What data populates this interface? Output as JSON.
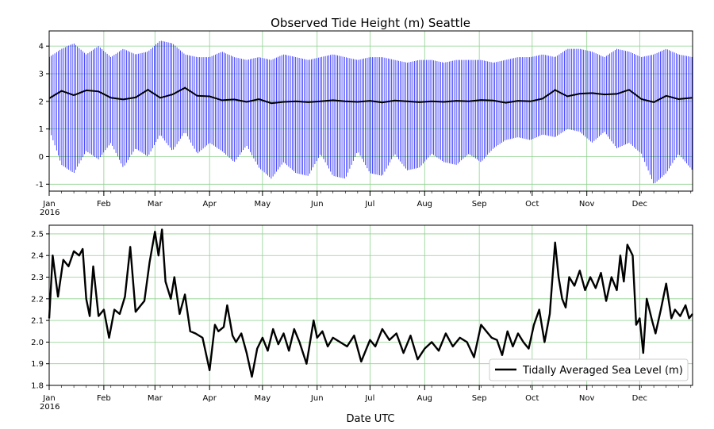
{
  "chart_data": [
    {
      "type": "line",
      "title": "Observed Tide Height (m) Seattle",
      "xlabel": "",
      "ylabel": "",
      "x_tick_labels": [
        "Jan",
        "Feb",
        "Mar",
        "Apr",
        "May",
        "Jun",
        "Jul",
        "Aug",
        "Sep",
        "Oct",
        "Nov",
        "Dec"
      ],
      "x_year_label": "2016",
      "xlim": [
        "2016-01-01",
        "2016-12-31"
      ],
      "ylim": [
        -1.25,
        4.55
      ],
      "y_ticks": [
        -1,
        0,
        1,
        2,
        3,
        4
      ],
      "grid": true,
      "colors": {
        "observed": "#0000ff",
        "average": "#000000",
        "grid": "#8fd18f"
      },
      "series": [
        {
          "role": "observed-envelope",
          "x": [
            "2016-01-01",
            "2016-01-08",
            "2016-01-15",
            "2016-01-22",
            "2016-01-29",
            "2016-02-05",
            "2016-02-12",
            "2016-02-19",
            "2016-02-26",
            "2016-03-04",
            "2016-03-11",
            "2016-03-18",
            "2016-03-25",
            "2016-04-01",
            "2016-04-08",
            "2016-04-15",
            "2016-04-22",
            "2016-04-29",
            "2016-05-06",
            "2016-05-13",
            "2016-05-20",
            "2016-05-27",
            "2016-06-03",
            "2016-06-10",
            "2016-06-17",
            "2016-06-24",
            "2016-07-01",
            "2016-07-08",
            "2016-07-15",
            "2016-07-22",
            "2016-07-29",
            "2016-08-05",
            "2016-08-12",
            "2016-08-19",
            "2016-08-26",
            "2016-09-02",
            "2016-09-09",
            "2016-09-16",
            "2016-09-23",
            "2016-09-30",
            "2016-10-07",
            "2016-10-14",
            "2016-10-21",
            "2016-10-28",
            "2016-11-04",
            "2016-11-11",
            "2016-11-18",
            "2016-11-25",
            "2016-12-02",
            "2016-12-09",
            "2016-12-16",
            "2016-12-23",
            "2016-12-31"
          ],
          "high": [
            3.6,
            3.9,
            4.1,
            3.7,
            4.0,
            3.6,
            3.9,
            3.7,
            3.8,
            4.2,
            4.1,
            3.7,
            3.6,
            3.6,
            3.8,
            3.6,
            3.5,
            3.6,
            3.5,
            3.7,
            3.6,
            3.5,
            3.6,
            3.7,
            3.6,
            3.5,
            3.6,
            3.6,
            3.5,
            3.4,
            3.5,
            3.5,
            3.4,
            3.5,
            3.5,
            3.5,
            3.4,
            3.5,
            3.6,
            3.6,
            3.7,
            3.6,
            3.9,
            3.9,
            3.8,
            3.6,
            3.9,
            3.8,
            3.6,
            3.7,
            3.9,
            3.7,
            3.6
          ],
          "low": [
            1.0,
            -0.3,
            -0.6,
            0.2,
            -0.1,
            0.5,
            -0.4,
            0.3,
            0.0,
            0.8,
            0.2,
            0.9,
            0.1,
            0.5,
            0.2,
            -0.2,
            0.4,
            -0.4,
            -0.8,
            -0.2,
            -0.6,
            -0.7,
            0.1,
            -0.7,
            -0.8,
            0.2,
            -0.6,
            -0.7,
            0.1,
            -0.5,
            -0.4,
            0.1,
            -0.2,
            -0.3,
            0.1,
            -0.2,
            0.3,
            0.6,
            0.7,
            0.6,
            0.8,
            0.7,
            1.0,
            0.9,
            0.5,
            0.9,
            0.3,
            0.5,
            0.1,
            -1.0,
            -0.6,
            0.1,
            -0.5
          ]
        },
        {
          "role": "average",
          "x": [
            "2016-01-01",
            "2016-01-08",
            "2016-01-15",
            "2016-01-22",
            "2016-01-29",
            "2016-02-05",
            "2016-02-12",
            "2016-02-19",
            "2016-02-26",
            "2016-03-04",
            "2016-03-11",
            "2016-03-18",
            "2016-03-25",
            "2016-04-01",
            "2016-04-08",
            "2016-04-15",
            "2016-04-22",
            "2016-04-29",
            "2016-05-06",
            "2016-05-13",
            "2016-05-20",
            "2016-05-27",
            "2016-06-03",
            "2016-06-10",
            "2016-06-17",
            "2016-06-24",
            "2016-07-01",
            "2016-07-08",
            "2016-07-15",
            "2016-07-22",
            "2016-07-29",
            "2016-08-05",
            "2016-08-12",
            "2016-08-19",
            "2016-08-26",
            "2016-09-02",
            "2016-09-09",
            "2016-09-16",
            "2016-09-23",
            "2016-09-30",
            "2016-10-07",
            "2016-10-14",
            "2016-10-21",
            "2016-10-28",
            "2016-11-04",
            "2016-11-11",
            "2016-11-18",
            "2016-11-25",
            "2016-12-02",
            "2016-12-09",
            "2016-12-16",
            "2016-12-23",
            "2016-12-31"
          ],
          "values": [
            2.11,
            2.38,
            2.22,
            2.4,
            2.36,
            2.13,
            2.07,
            2.14,
            2.42,
            2.13,
            2.25,
            2.49,
            2.2,
            2.18,
            2.04,
            2.07,
            1.98,
            2.08,
            1.93,
            1.98,
            2.0,
            1.97,
            2.0,
            2.04,
            2.0,
            1.98,
            2.02,
            1.96,
            2.03,
            2.0,
            1.97,
            2.0,
            1.98,
            2.02,
            2.0,
            2.05,
            2.03,
            1.95,
            2.02,
            2.0,
            2.1,
            2.41,
            2.18,
            2.28,
            2.3,
            2.25,
            2.27,
            2.42,
            2.08,
            1.97,
            2.2,
            2.08,
            2.13
          ]
        }
      ]
    },
    {
      "type": "line",
      "title": "",
      "xlabel": "Date UTC",
      "ylabel": "",
      "x_tick_labels": [
        "Jan",
        "Feb",
        "Mar",
        "Apr",
        "May",
        "Jun",
        "Jul",
        "Aug",
        "Sep",
        "Oct",
        "Nov",
        "Dec"
      ],
      "x_year_label": "2016",
      "xlim": [
        "2016-01-01",
        "2016-12-31"
      ],
      "ylim": [
        1.8,
        2.54
      ],
      "y_ticks": [
        1.8,
        1.9,
        2.0,
        2.1,
        2.2,
        2.3,
        2.4,
        2.5
      ],
      "grid": true,
      "legend_position": "bottom-right",
      "colors": {
        "line": "#000000",
        "grid": "#8fd18f"
      },
      "series": [
        {
          "name": "Tidally Averaged Sea Level (m)",
          "x": [
            "2016-01-01",
            "2016-01-03",
            "2016-01-06",
            "2016-01-09",
            "2016-01-12",
            "2016-01-15",
            "2016-01-18",
            "2016-01-20",
            "2016-01-22",
            "2016-01-24",
            "2016-01-26",
            "2016-01-29",
            "2016-02-01",
            "2016-02-04",
            "2016-02-07",
            "2016-02-10",
            "2016-02-13",
            "2016-02-16",
            "2016-02-19",
            "2016-02-21",
            "2016-02-24",
            "2016-02-27",
            "2016-03-01",
            "2016-03-03",
            "2016-03-05",
            "2016-03-07",
            "2016-03-10",
            "2016-03-12",
            "2016-03-15",
            "2016-03-18",
            "2016-03-21",
            "2016-03-24",
            "2016-03-28",
            "2016-04-01",
            "2016-04-04",
            "2016-04-06",
            "2016-04-09",
            "2016-04-11",
            "2016-04-14",
            "2016-04-16",
            "2016-04-19",
            "2016-04-22",
            "2016-04-25",
            "2016-04-28",
            "2016-05-01",
            "2016-05-04",
            "2016-05-07",
            "2016-05-10",
            "2016-05-13",
            "2016-05-16",
            "2016-05-19",
            "2016-05-22",
            "2016-05-26",
            "2016-05-30",
            "2016-06-01",
            "2016-06-04",
            "2016-06-07",
            "2016-06-10",
            "2016-06-14",
            "2016-06-18",
            "2016-06-22",
            "2016-06-26",
            "2016-07-01",
            "2016-07-04",
            "2016-07-08",
            "2016-07-12",
            "2016-07-16",
            "2016-07-20",
            "2016-07-24",
            "2016-07-28",
            "2016-08-01",
            "2016-08-05",
            "2016-08-09",
            "2016-08-13",
            "2016-08-17",
            "2016-08-21",
            "2016-08-25",
            "2016-08-29",
            "2016-09-02",
            "2016-09-05",
            "2016-09-08",
            "2016-09-11",
            "2016-09-14",
            "2016-09-17",
            "2016-09-20",
            "2016-09-23",
            "2016-09-26",
            "2016-09-29",
            "2016-10-02",
            "2016-10-05",
            "2016-10-08",
            "2016-10-11",
            "2016-10-14",
            "2016-10-16",
            "2016-10-18",
            "2016-10-20",
            "2016-10-22",
            "2016-10-25",
            "2016-10-28",
            "2016-10-31",
            "2016-11-03",
            "2016-11-06",
            "2016-11-09",
            "2016-11-12",
            "2016-11-15",
            "2016-11-18",
            "2016-11-20",
            "2016-11-22",
            "2016-11-24",
            "2016-11-27",
            "2016-11-29",
            "2016-12-01",
            "2016-12-03",
            "2016-12-05",
            "2016-12-08",
            "2016-12-10",
            "2016-12-13",
            "2016-12-16",
            "2016-12-19",
            "2016-12-21",
            "2016-12-24",
            "2016-12-27",
            "2016-12-29",
            "2016-12-31"
          ],
          "values": [
            2.11,
            2.4,
            2.21,
            2.38,
            2.35,
            2.42,
            2.4,
            2.43,
            2.2,
            2.12,
            2.35,
            2.12,
            2.15,
            2.02,
            2.15,
            2.13,
            2.21,
            2.44,
            2.14,
            2.16,
            2.19,
            2.37,
            2.51,
            2.4,
            2.52,
            2.28,
            2.2,
            2.3,
            2.13,
            2.22,
            2.05,
            2.04,
            2.02,
            1.87,
            2.08,
            2.05,
            2.07,
            2.17,
            2.03,
            2.0,
            2.04,
            1.95,
            1.84,
            1.97,
            2.02,
            1.96,
            2.06,
            1.99,
            2.04,
            1.96,
            2.06,
            2.0,
            1.9,
            2.1,
            2.02,
            2.05,
            1.98,
            2.02,
            2.0,
            1.98,
            2.03,
            1.91,
            2.01,
            1.98,
            2.06,
            2.01,
            2.04,
            1.95,
            2.03,
            1.92,
            1.97,
            2.0,
            1.96,
            2.04,
            1.98,
            2.02,
            2.0,
            1.93,
            2.08,
            2.05,
            2.02,
            2.01,
            1.94,
            2.05,
            1.98,
            2.04,
            2.0,
            1.97,
            2.08,
            2.15,
            2.0,
            2.13,
            2.46,
            2.3,
            2.2,
            2.16,
            2.3,
            2.26,
            2.33,
            2.24,
            2.3,
            2.25,
            2.32,
            2.19,
            2.3,
            2.24,
            2.4,
            2.28,
            2.45,
            2.4,
            2.08,
            2.11,
            1.95,
            2.2,
            2.1,
            2.04,
            2.15,
            2.27,
            2.11,
            2.15,
            2.12,
            2.17,
            2.11,
            2.13
          ]
        }
      ]
    }
  ]
}
